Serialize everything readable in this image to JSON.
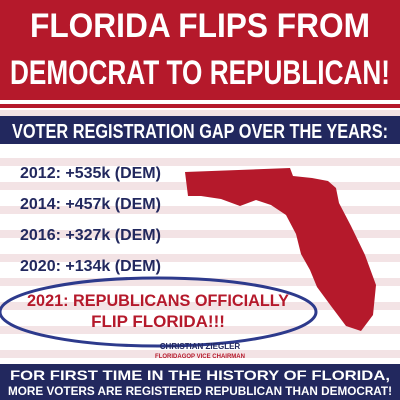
{
  "header": {
    "title_lines": [
      "FLORIDA FLIPS FROM",
      "DEMOCRAT TO REPUBLICAN!"
    ]
  },
  "subheader": "VOTER REGISTRATION GAP OVER THE YEARS:",
  "items": [
    "2012: +535k (DEM)",
    "2014: +457k (DEM)",
    "2016: +327k (DEM)",
    "2020: +134k (DEM)"
  ],
  "highlight": {
    "lines": [
      "2021: REPUBLICANS OFFICIALLY",
      "FLIP FLORIDA!!!"
    ]
  },
  "signature": {
    "name": "CHRISTIAN ZIEGLER",
    "role": "FLORIDAGOP VICE CHAIRMAN"
  },
  "footer": {
    "lines": [
      "FOR FIRST TIME IN THE HISTORY OF FLORIDA,",
      "MORE VOTERS ARE REGISTERED REPUBLICAN THAN DEMOCRAT!"
    ]
  }
}
